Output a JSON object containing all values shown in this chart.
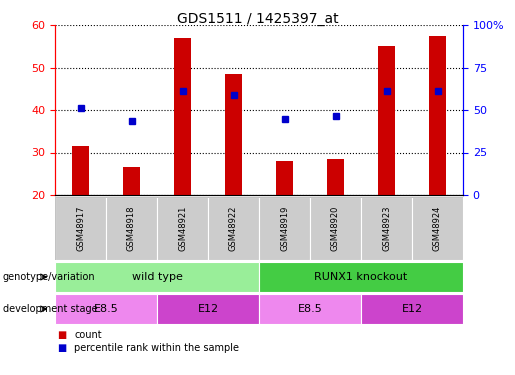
{
  "title": "GDS1511 / 1425397_at",
  "samples": [
    "GSM48917",
    "GSM48918",
    "GSM48921",
    "GSM48922",
    "GSM48919",
    "GSM48920",
    "GSM48923",
    "GSM48924"
  ],
  "counts": [
    31.5,
    26.5,
    57.0,
    48.5,
    28.0,
    28.5,
    55.0,
    57.5
  ],
  "percentiles": [
    40.5,
    37.5,
    44.5,
    43.5,
    38.0,
    38.5,
    44.5,
    44.5
  ],
  "ylim_left": [
    20,
    60
  ],
  "ylim_right": [
    0,
    100
  ],
  "y_ticks_left": [
    20,
    30,
    40,
    50,
    60
  ],
  "y_ticks_right": [
    0,
    25,
    50,
    75,
    100
  ],
  "bar_color": "#cc0000",
  "dot_color": "#0000cc",
  "bar_width": 0.35,
  "genotype_groups": [
    {
      "label": "wild type",
      "start": 0,
      "end": 4,
      "color": "#99ee99"
    },
    {
      "label": "RUNX1 knockout",
      "start": 4,
      "end": 8,
      "color": "#44cc44"
    }
  ],
  "dev_stage_groups": [
    {
      "label": "E8.5",
      "start": 0,
      "end": 2,
      "color": "#ee88ee"
    },
    {
      "label": "E12",
      "start": 2,
      "end": 4,
      "color": "#cc44cc"
    },
    {
      "label": "E8.5",
      "start": 4,
      "end": 6,
      "color": "#ee88ee"
    },
    {
      "label": "E12",
      "start": 6,
      "end": 8,
      "color": "#cc44cc"
    }
  ],
  "sample_box_color": "#cccccc",
  "legend_count_color": "#cc0000",
  "legend_dot_color": "#0000cc",
  "legend_count_label": "count",
  "legend_dot_label": "percentile rank within the sample",
  "genotype_label": "genotype/variation",
  "dev_stage_label": "development stage"
}
